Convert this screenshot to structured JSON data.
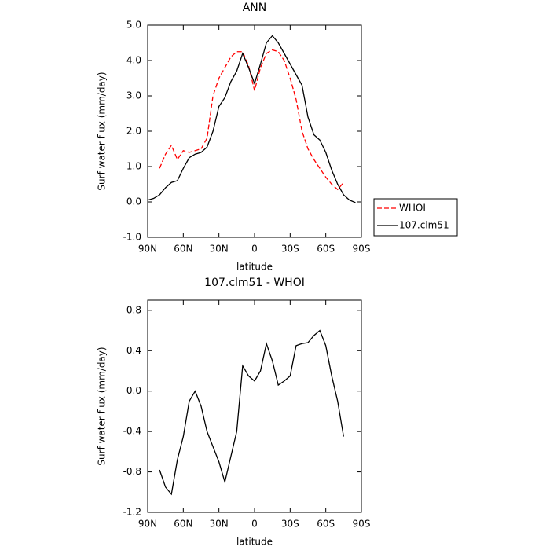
{
  "chart_data": [
    {
      "type": "line",
      "title": "ANN",
      "xlabel": "latitude",
      "ylabel": "Surf water flux (mm/day)",
      "x": [
        90,
        85,
        80,
        75,
        70,
        65,
        60,
        55,
        50,
        45,
        40,
        35,
        30,
        25,
        20,
        15,
        10,
        5,
        0,
        -5,
        -10,
        -15,
        -20,
        -25,
        -30,
        -35,
        -40,
        -45,
        -50,
        -55,
        -60,
        -65,
        -70,
        -75,
        -80,
        -85,
        -90
      ],
      "series": [
        {
          "name": "WHOI",
          "color": "#ff0000",
          "style": "dashed",
          "values": [
            null,
            null,
            0.95,
            1.35,
            1.6,
            1.2,
            1.45,
            1.4,
            1.45,
            1.5,
            1.8,
            3.0,
            3.5,
            3.8,
            4.1,
            4.25,
            4.25,
            3.85,
            3.15,
            3.8,
            4.2,
            4.3,
            4.25,
            4.0,
            3.5,
            2.9,
            2.0,
            1.5,
            1.2,
            0.95,
            0.7,
            0.5,
            0.35,
            0.55,
            null,
            null,
            null
          ]
        },
        {
          "name": "107.clm51",
          "color": "#000000",
          "style": "solid",
          "values": [
            0.05,
            0.1,
            0.2,
            0.4,
            0.55,
            0.6,
            0.95,
            1.25,
            1.35,
            1.4,
            1.55,
            2.0,
            2.7,
            2.95,
            3.4,
            3.7,
            4.2,
            3.8,
            3.35,
            3.9,
            4.5,
            4.7,
            4.5,
            4.2,
            3.9,
            3.6,
            3.3,
            2.4,
            1.9,
            1.75,
            1.4,
            0.9,
            0.5,
            0.2,
            0.05,
            -0.02,
            null
          ]
        }
      ],
      "xlim": [
        90,
        -90
      ],
      "xticks": [
        {
          "value": 90,
          "label": "90N"
        },
        {
          "value": 60,
          "label": "60N"
        },
        {
          "value": 30,
          "label": "30N"
        },
        0,
        {
          "value": -30,
          "label": "30S"
        },
        {
          "value": -60,
          "label": "60S"
        },
        {
          "value": -90,
          "label": "90S"
        }
      ],
      "ylim": [
        -1,
        5
      ],
      "yticks": [
        {
          "value": -1,
          "label": "-1.0"
        },
        {
          "value": 0,
          "label": "0.0"
        },
        {
          "value": 1,
          "label": "1.0"
        },
        {
          "value": 2,
          "label": "2.0"
        },
        {
          "value": 3,
          "label": "3.0"
        },
        {
          "value": 4,
          "label": "4.0"
        },
        {
          "value": 5,
          "label": "5.0"
        }
      ],
      "legend": "right"
    },
    {
      "type": "line",
      "title": "107.clm51 - WHOI",
      "xlabel": "latitude",
      "ylabel": "Surf water flux (mm/day)",
      "x": [
        90,
        85,
        80,
        75,
        70,
        65,
        60,
        55,
        50,
        45,
        40,
        35,
        30,
        25,
        20,
        15,
        10,
        5,
        0,
        -5,
        -10,
        -15,
        -20,
        -25,
        -30,
        -35,
        -40,
        -45,
        -50,
        -55,
        -60,
        -65,
        -70,
        -75,
        -80,
        -85,
        -90
      ],
      "series": [
        {
          "color": "#000000",
          "style": "solid",
          "values": [
            null,
            null,
            -0.78,
            -0.95,
            -1.02,
            -0.68,
            -0.45,
            -0.1,
            0.0,
            -0.15,
            -0.4,
            -0.55,
            -0.7,
            -0.9,
            -0.65,
            -0.4,
            0.25,
            0.15,
            0.1,
            0.2,
            0.47,
            0.3,
            0.06,
            0.1,
            0.15,
            0.45,
            0.47,
            0.48,
            0.55,
            0.6,
            0.45,
            0.15,
            -0.1,
            -0.45,
            null,
            null,
            null
          ]
        }
      ],
      "xlim": [
        90,
        -90
      ],
      "xticks": [
        {
          "value": 90,
          "label": "90N"
        },
        {
          "value": 60,
          "label": "60N"
        },
        {
          "value": 30,
          "label": "30N"
        },
        0,
        {
          "value": -30,
          "label": "30S"
        },
        {
          "value": -60,
          "label": "60S"
        },
        {
          "value": -90,
          "label": "90S"
        }
      ],
      "ylim": [
        -1.2,
        0.9
      ],
      "yticks": [
        {
          "value": -1.2,
          "label": "-1.2"
        },
        {
          "value": -0.8,
          "label": "-0.8"
        },
        {
          "value": -0.4,
          "label": "-0.4"
        },
        {
          "value": 0,
          "label": "0.0"
        },
        {
          "value": 0.4,
          "label": "0.4"
        },
        {
          "value": 0.8,
          "label": "0.8"
        }
      ]
    }
  ]
}
